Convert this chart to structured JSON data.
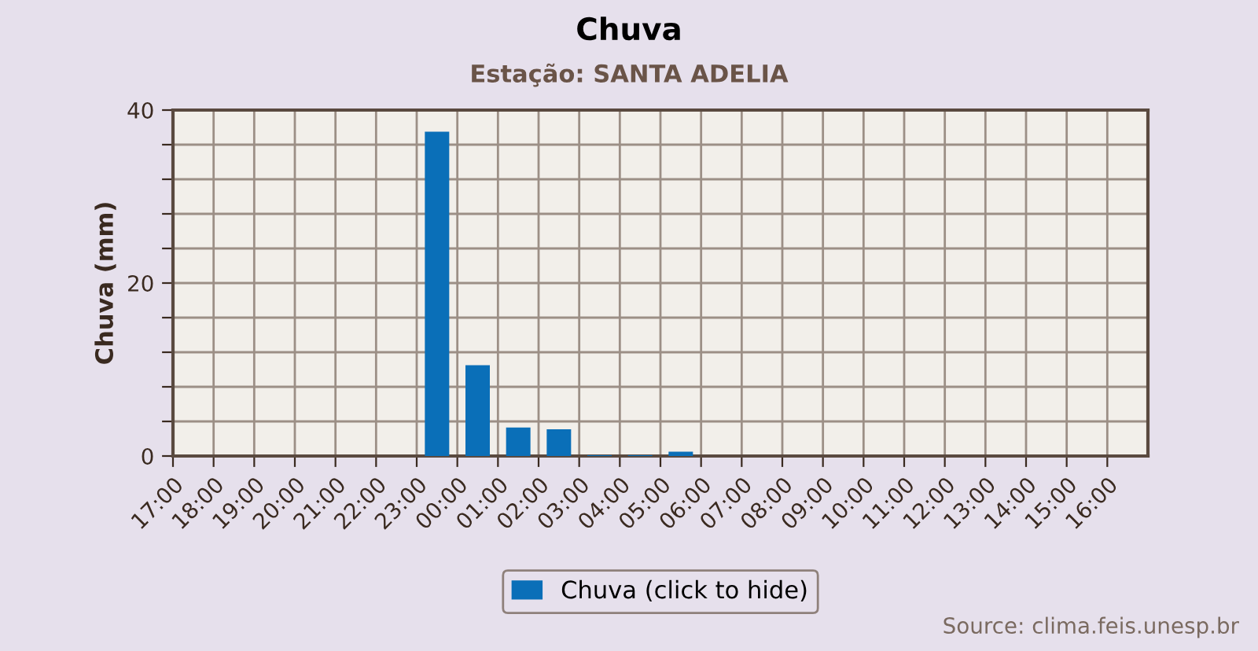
{
  "chart_data": {
    "type": "bar",
    "title": "Chuva",
    "subtitle": "Estação: SANTA ADELIA",
    "ylabel": "Chuva (mm)",
    "categories": [
      "17:00",
      "18:00",
      "19:00",
      "20:00",
      "21:00",
      "22:00",
      "23:00",
      "00:00",
      "01:00",
      "02:00",
      "03:00",
      "04:00",
      "05:00",
      "06:00",
      "07:00",
      "08:00",
      "09:00",
      "10:00",
      "11:00",
      "12:00",
      "13:00",
      "14:00",
      "15:00",
      "16:00"
    ],
    "series": [
      {
        "name": "Chuva (click to hide)",
        "color": "#0a6fb8",
        "values": [
          0,
          0,
          0,
          0,
          0,
          0,
          37.5,
          10.5,
          3.3,
          3.1,
          0.1,
          0.1,
          0.5,
          0,
          0,
          0,
          0,
          0,
          0,
          0,
          0,
          0,
          0,
          0
        ]
      }
    ],
    "ylim": [
      0,
      40
    ],
    "yticks": [
      0,
      {
        "value": 4,
        "label": null
      },
      {
        "value": 8,
        "label": null
      },
      {
        "value": 12,
        "label": null
      },
      {
        "value": 16,
        "label": null
      },
      20,
      {
        "value": 24,
        "label": null
      },
      {
        "value": 28,
        "label": null
      },
      {
        "value": 32,
        "label": null
      },
      {
        "value": 36,
        "label": null
      },
      40
    ],
    "grid": true,
    "legend": "bottom",
    "annotations": [
      "Source: clima.feis.unesp.br"
    ]
  }
}
